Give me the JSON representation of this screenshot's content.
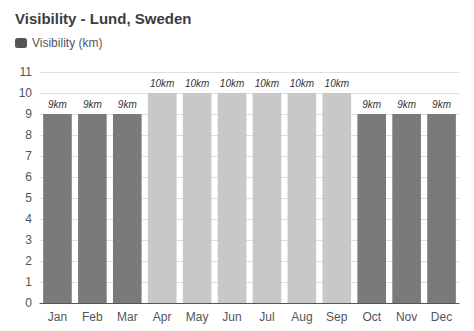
{
  "chart_data": {
    "type": "bar",
    "title": "Visibility - Lund, Sweden",
    "categories": [
      "Jan",
      "Feb",
      "Mar",
      "Apr",
      "May",
      "Jun",
      "Jul",
      "Aug",
      "Sep",
      "Oct",
      "Nov",
      "Dec"
    ],
    "series": [
      {
        "name": "Visibility (km)",
        "color": "#555555",
        "colors": [
          "#7a7a7a",
          "#7a7a7a",
          "#7a7a7a",
          "#c8c8c8",
          "#c8c8c8",
          "#c8c8c8",
          "#c8c8c8",
          "#c8c8c8",
          "#c8c8c8",
          "#7a7a7a",
          "#7a7a7a",
          "#7a7a7a"
        ],
        "values": [
          9,
          9,
          9,
          10,
          10,
          10,
          10,
          10,
          10,
          9,
          9,
          9
        ],
        "value_labels": [
          "9km",
          "9km",
          "9km",
          "10km",
          "10km",
          "10km",
          "10km",
          "10km",
          "10km",
          "9km",
          "9km",
          "9km"
        ]
      }
    ],
    "ylim": [
      0,
      11
    ],
    "yticks": [
      0,
      1,
      2,
      3,
      4,
      5,
      6,
      7,
      8,
      9,
      10,
      11
    ],
    "grid": true,
    "legend": "upper left",
    "data_labels": true
  }
}
